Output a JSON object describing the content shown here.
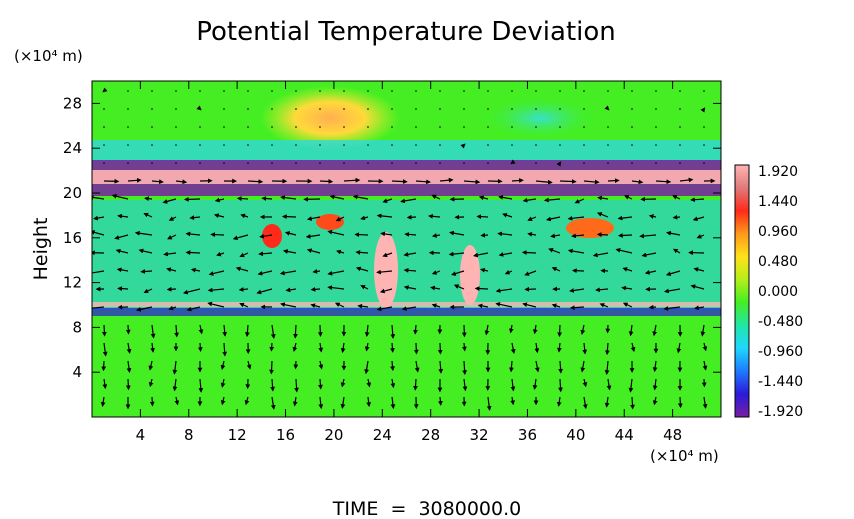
{
  "chart_data": {
    "type": "heatmap",
    "title": "Potential Temperature Deviation",
    "ylabel": "Height",
    "y_unit": "(×10⁴ m)",
    "x_unit": "(×10⁴ m)",
    "x_ticks": [
      4,
      8,
      12,
      16,
      20,
      24,
      28,
      32,
      36,
      40,
      44,
      48
    ],
    "y_ticks": [
      4,
      8,
      12,
      16,
      20,
      24,
      28
    ],
    "xlim": [
      0,
      52
    ],
    "ylim": [
      0,
      30
    ],
    "colorbar": {
      "labels": [
        "1.920",
        "1.440",
        "0.960",
        "0.480",
        "0.000",
        "-0.480",
        "-0.960",
        "-1.440",
        "-1.920"
      ],
      "range": [
        -1.92,
        1.92
      ],
      "stops": [
        "#7a1fa2",
        "#2a1ad9",
        "#1e7bff",
        "#1fd6ff",
        "#21e6a5",
        "#44ee22",
        "#b5ee1a",
        "#ffe21a",
        "#ff9a1a",
        "#ff2a1a",
        "#e07a7a",
        "#ffb4b4"
      ]
    },
    "background_value": 0.0,
    "overlay": "wind vectors (arrows)",
    "footer": "TIME  =  3080000.0"
  }
}
